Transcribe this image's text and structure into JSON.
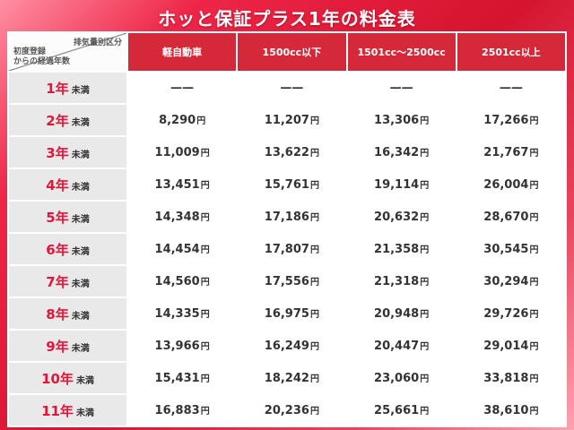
{
  "title": "ホッと保証プラス1年の料金表",
  "table": {
    "corner_top": "排気量別区分",
    "corner_bottom": [
      "初度登録",
      "からの経過年数"
    ],
    "columns": [
      "軽自動車",
      "1500cc以下",
      "1501cc〜2500cc",
      "2501cc以上"
    ],
    "rows": [
      {
        "label": "1年",
        "suffix": "未満",
        "unit": "",
        "values": [
          "——",
          "——",
          "——",
          "——"
        ]
      },
      {
        "label": "2年",
        "suffix": "未満",
        "unit": "円",
        "values": [
          "8,290",
          "11,207",
          "13,306",
          "17,266"
        ]
      },
      {
        "label": "3年",
        "suffix": "未満",
        "unit": "円",
        "values": [
          "11,009",
          "13,622",
          "16,342",
          "21,767"
        ]
      },
      {
        "label": "4年",
        "suffix": "未満",
        "unit": "円",
        "values": [
          "13,451",
          "15,761",
          "19,114",
          "26,004"
        ]
      },
      {
        "label": "5年",
        "suffix": "未満",
        "unit": "円",
        "values": [
          "14,348",
          "17,186",
          "20,632",
          "28,670"
        ]
      },
      {
        "label": "6年",
        "suffix": "未満",
        "unit": "円",
        "values": [
          "14,454",
          "17,807",
          "21,358",
          "30,545"
        ]
      },
      {
        "label": "7年",
        "suffix": "未満",
        "unit": "円",
        "values": [
          "14,560",
          "17,556",
          "21,318",
          "30,294"
        ]
      },
      {
        "label": "8年",
        "suffix": "未満",
        "unit": "円",
        "values": [
          "14,335",
          "16,975",
          "20,948",
          "29,726"
        ]
      },
      {
        "label": "9年",
        "suffix": "未満",
        "unit": "円",
        "values": [
          "13,966",
          "16,249",
          "20,447",
          "29,014"
        ]
      },
      {
        "label": "10年",
        "suffix": "未満",
        "unit": "円",
        "values": [
          "15,431",
          "18,242",
          "23,060",
          "33,818"
        ]
      },
      {
        "label": "11年",
        "suffix": "未満",
        "unit": "円",
        "values": [
          "16,883",
          "20,236",
          "25,661",
          "38,610"
        ]
      }
    ]
  },
  "colors": {
    "header_red": "#d5293a",
    "year_red": "#e0173a",
    "background_pink": "#ff8fa3",
    "background_red": "#d5142f",
    "row_label_gray": "#e9e9e9"
  },
  "chart_data": {
    "type": "table",
    "title": "ホッと保証プラス1年の料金表",
    "columns": [
      "軽自動車",
      "1500cc以下",
      "1501cc〜2500cc",
      "2501cc以上"
    ],
    "row_labels": [
      "1年未満",
      "2年未満",
      "3年未満",
      "4年未満",
      "5年未満",
      "6年未満",
      "7年未満",
      "8年未満",
      "9年未満",
      "10年未満",
      "11年未満"
    ],
    "unit": "円",
    "values_yen": [
      [
        null,
        null,
        null,
        null
      ],
      [
        8290,
        11207,
        13306,
        17266
      ],
      [
        11009,
        13622,
        16342,
        21767
      ],
      [
        13451,
        15761,
        19114,
        26004
      ],
      [
        14348,
        17186,
        20632,
        28670
      ],
      [
        14454,
        17807,
        21358,
        30545
      ],
      [
        14560,
        17556,
        21318,
        30294
      ],
      [
        14335,
        16975,
        20948,
        29726
      ],
      [
        13966,
        16249,
        20447,
        29014
      ],
      [
        15431,
        18242,
        23060,
        33818
      ],
      [
        16883,
        20236,
        25661,
        38610
      ]
    ]
  }
}
